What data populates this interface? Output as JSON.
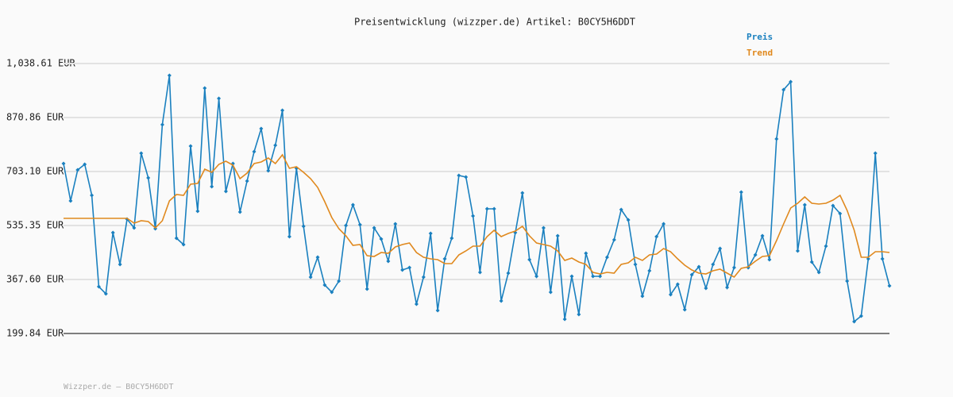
{
  "chart_data": {
    "type": "line",
    "title": "Preisentwicklung (wizzper.de) Artikel: B0CY5H6DDT",
    "footer": "Wizzper.de – B0CY5H6DDT",
    "ylim": [
      199.84,
      1038.61
    ],
    "yticks": [
      {
        "value": 199.84,
        "label": "199.84 EUR"
      },
      {
        "value": 367.6,
        "label": "367.60 EUR"
      },
      {
        "value": 535.35,
        "label": "535.35 EUR"
      },
      {
        "value": 703.1,
        "label": "703.10 EUR"
      },
      {
        "value": 870.86,
        "label": "870.86 EUR"
      },
      {
        "value": 1038.61,
        "label": "1,038.61 EUR"
      }
    ],
    "grid": true,
    "legend": "top-right",
    "series": [
      {
        "name": "Preis",
        "color": "#1a80bf",
        "markers": true,
        "values": [
          727.7,
          611.8,
          708.0,
          725.3,
          629.0,
          345.4,
          323.2,
          513.1,
          414.5,
          555.1,
          527.9,
          759.8,
          683.3,
          525.5,
          848.6,
          1001.5,
          495.8,
          476.1,
          782.0,
          579.7,
          962.1,
          656.2,
          930.0,
          641.4,
          727.7,
          577.3,
          673.5,
          764.7,
          836.3,
          705.5,
          784.5,
          893.0,
          500.8,
          712.9,
          532.9,
          375.0,
          436.6,
          350.3,
          328.1,
          362.6,
          535.3,
          599.5,
          537.8,
          338.0,
          527.9,
          493.4,
          424.3,
          540.2,
          397.2,
          404.6,
          291.1,
          375.0,
          510.7,
          271.4,
          431.7,
          495.8,
          690.7,
          685.8,
          564.9,
          389.8,
          587.1,
          587.1,
          301.0,
          387.3,
          513.1,
          636.5,
          429.3,
          377.4,
          527.9,
          328.1,
          503.3,
          244.2,
          377.4,
          259.0,
          449.0,
          377.4,
          377.4,
          436.6,
          490.9,
          584.7,
          552.6,
          414.5,
          315.8,
          394.7,
          500.8,
          540.2,
          320.7,
          352.8,
          273.8,
          382.4,
          407.1,
          340.4,
          414.5,
          463.8,
          342.9,
          404.6,
          638.9,
          404.6,
          444.0,
          503.3,
          429.3,
          804.2,
          957.2,
          981.8,
          456.4,
          599.5,
          421.9,
          389.8,
          471.2,
          597.0,
          572.3,
          362.6,
          236.8,
          254.1,
          431.7,
          759.8,
          431.7,
          347.8
        ]
      },
      {
        "name": "Trend",
        "color": "#e0891e",
        "markers": false,
        "values": [
          557.5,
          557.5,
          557.5,
          557.5,
          557.5,
          557.5,
          557.5,
          557.5,
          557.5,
          557.5,
          542.7,
          550.1,
          547.6,
          527.9,
          550.1,
          611.8,
          631.5,
          629.0,
          663.6,
          666.1,
          710.5,
          700.6,
          725.3,
          735.1,
          722.8,
          680.9,
          698.1,
          727.7,
          732.7,
          745.0,
          727.7,
          754.9,
          712.9,
          717.9,
          700.6,
          680.9,
          653.7,
          609.3,
          560.0,
          525.5,
          503.3,
          473.6,
          476.1,
          441.6,
          439.1,
          451.5,
          449.0,
          468.7,
          476.1,
          481.0,
          451.5,
          436.6,
          431.7,
          429.3,
          416.9,
          416.9,
          444.0,
          456.4,
          471.2,
          471.2,
          500.8,
          520.5,
          500.8,
          510.7,
          518.0,
          532.9,
          503.3,
          481.0,
          476.1,
          471.2,
          456.4,
          426.8,
          434.2,
          421.9,
          414.5,
          389.8,
          384.9,
          389.8,
          387.3,
          414.5,
          419.4,
          436.6,
          426.8,
          444.0,
          446.5,
          463.8,
          453.9,
          431.7,
          412.0,
          397.2,
          387.3,
          384.9,
          394.7,
          399.7,
          387.3,
          375.0,
          402.1,
          407.1,
          424.3,
          439.1,
          441.6,
          488.5,
          540.2,
          589.6,
          604.4,
          624.1,
          604.4,
          601.9,
          604.4,
          614.3,
          629.0,
          582.2,
          520.5,
          436.6,
          436.6,
          453.9,
          453.9,
          451.5
        ]
      }
    ]
  }
}
